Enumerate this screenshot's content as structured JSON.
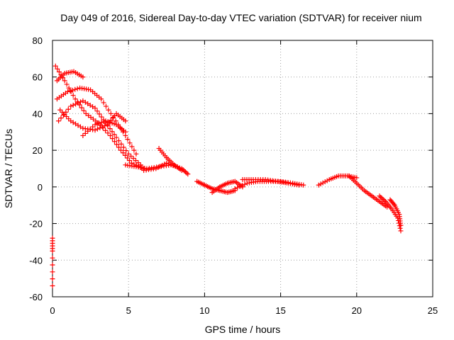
{
  "chart_data": {
    "type": "scatter",
    "title": "Day 049 of 2016, Sidereal Day-to-day VTEC variation (SDTVAR) for receiver nium",
    "xlabel": "GPS time / hours",
    "ylabel": "SDTVAR / TECUs",
    "xlim": [
      0,
      25
    ],
    "ylim": [
      -60,
      80
    ],
    "xticks": [
      "0",
      "5",
      "10",
      "15",
      "20",
      "25"
    ],
    "yticks": [
      "-60",
      "-40",
      "-20",
      "0",
      "20",
      "40",
      "60",
      "80"
    ],
    "grid": true,
    "marker": "+",
    "color": "#ff0000",
    "series": [
      {
        "name": "arc-1",
        "x": [
          0.2,
          0.8,
          1.5,
          2.2,
          3.0,
          3.8,
          4.5,
          5.2,
          6.0
        ],
        "y": [
          66,
          58,
          48,
          40,
          35,
          28,
          20,
          13,
          10
        ]
      },
      {
        "name": "arc-2",
        "x": [
          0.3,
          1.0,
          1.8,
          2.5,
          3.2,
          4.0,
          4.8,
          5.5
        ],
        "y": [
          48,
          52,
          54,
          53,
          48,
          38,
          28,
          18
        ]
      },
      {
        "name": "arc-3",
        "x": [
          0.4,
          1.2,
          2.0,
          2.8,
          3.5,
          4.2,
          5.0,
          5.8
        ],
        "y": [
          36,
          44,
          47,
          43,
          35,
          27,
          18,
          12
        ]
      },
      {
        "name": "arc-4",
        "x": [
          0.3,
          0.8,
          1.4,
          2.0
        ],
        "y": [
          58,
          62,
          63,
          60
        ]
      },
      {
        "name": "arc-5",
        "x": [
          0.5,
          1.2,
          2.0,
          2.8,
          3.6,
          4.2,
          4.8
        ],
        "y": [
          42,
          36,
          32,
          31,
          34,
          40,
          36
        ]
      },
      {
        "name": "arc-6",
        "x": [
          2.0,
          2.8,
          3.5,
          4.2,
          4.8
        ],
        "y": [
          28,
          34,
          36,
          34,
          30
        ]
      },
      {
        "name": "arc-7",
        "x": [
          4.8,
          5.5,
          6.2,
          7.0,
          7.8,
          8.5,
          8.9
        ],
        "y": [
          12,
          11,
          10,
          11,
          12,
          10,
          7
        ]
      },
      {
        "name": "arc-8",
        "x": [
          7.0,
          7.5,
          8.0,
          8.5
        ],
        "y": [
          21,
          16,
          12,
          9
        ]
      },
      {
        "name": "arc-9",
        "x": [
          6.0,
          6.8,
          7.5,
          8.2
        ],
        "y": [
          9,
          10,
          13,
          11
        ]
      },
      {
        "name": "arc-10",
        "x": [
          9.5,
          10.0,
          10.5,
          11.0,
          11.5,
          12.0
        ],
        "y": [
          3,
          1,
          -1,
          -2,
          -3,
          -2
        ]
      },
      {
        "name": "arc-11",
        "x": [
          10.5,
          11.0,
          11.5,
          12.0,
          12.5
        ],
        "y": [
          -3,
          0,
          2,
          3,
          0
        ]
      },
      {
        "name": "arc-12",
        "x": [
          12.0,
          12.8,
          13.5,
          14.2,
          15.0,
          15.8,
          16.5
        ],
        "y": [
          -1,
          2,
          3,
          3,
          3,
          2,
          1
        ]
      },
      {
        "name": "arc-13",
        "x": [
          12.5,
          13.2,
          14.0,
          14.8,
          15.5,
          16.2
        ],
        "y": [
          4,
          4,
          4,
          3,
          2,
          1
        ]
      },
      {
        "name": "arc-14",
        "x": [
          17.5,
          18.2,
          18.8,
          19.4,
          20.0
        ],
        "y": [
          1,
          4,
          6,
          6,
          5
        ]
      },
      {
        "name": "arc-15",
        "x": [
          19.5,
          20.0,
          20.5,
          21.0,
          21.5,
          22.0
        ],
        "y": [
          6,
          2,
          -2,
          -5,
          -8,
          -11
        ]
      },
      {
        "name": "arc-16",
        "x": [
          21.5,
          21.9,
          22.3,
          22.7,
          22.9
        ],
        "y": [
          -5,
          -8,
          -12,
          -17,
          -24
        ]
      },
      {
        "name": "arc-17",
        "x": [
          22.2,
          22.5,
          22.8,
          22.9
        ],
        "y": [
          -7,
          -10,
          -15,
          -21
        ]
      },
      {
        "name": "arc-18",
        "x": [
          0.0,
          0.0,
          0.0
        ],
        "y": [
          -28,
          -35,
          -54
        ]
      }
    ]
  }
}
